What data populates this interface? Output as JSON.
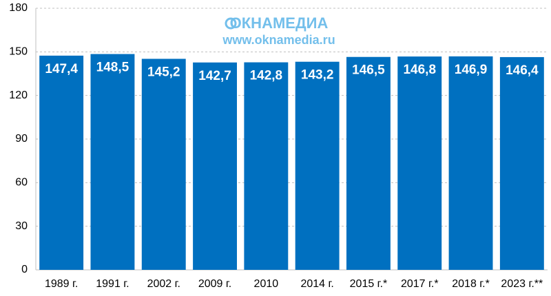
{
  "chart_data": {
    "type": "bar",
    "categories": [
      "1989 г.",
      "1991 г.",
      "2002 г.",
      "2009 г.",
      "2010",
      "2014 г.",
      "2015 г.*",
      "2017 г.*",
      "2018 г.*",
      "2023 г.**"
    ],
    "values": [
      147.4,
      148.5,
      145.2,
      142.7,
      142.8,
      143.2,
      146.5,
      146.8,
      146.9,
      146.4
    ],
    "value_labels": [
      "147,4",
      "148,5",
      "145,2",
      "142,7",
      "142,8",
      "143,2",
      "146,5",
      "146,8",
      "146,9",
      "146,4"
    ],
    "color": "#0070c0",
    "ylim": [
      0,
      180
    ],
    "yticks": [
      0,
      30,
      60,
      90,
      120,
      150,
      180
    ],
    "grid": true,
    "annotations": [
      "ОКНАМЕДИА",
      "www.oknamedia.ru"
    ]
  }
}
